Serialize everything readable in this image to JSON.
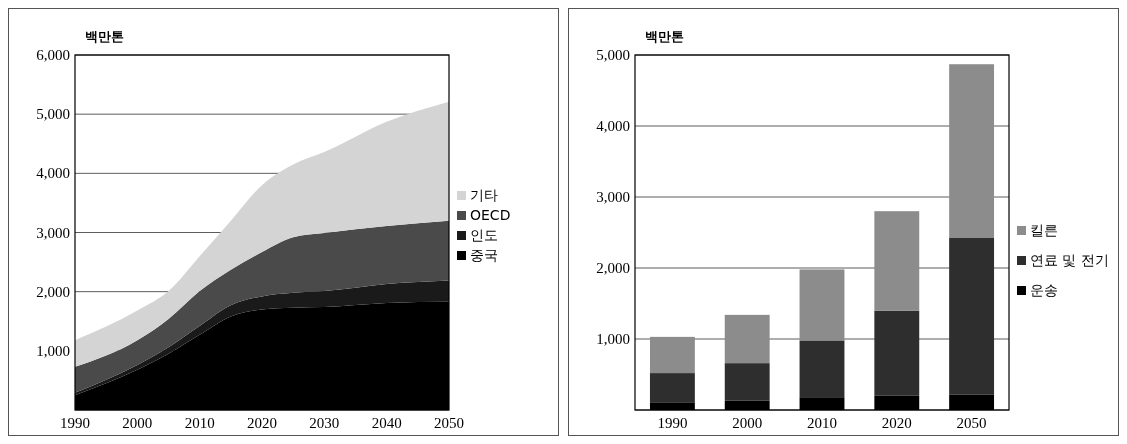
{
  "chart_data": [
    {
      "type": "area",
      "stacked": true,
      "ylabel": "백만톤",
      "x": [
        1990,
        2000,
        2005,
        2010,
        2015,
        2020,
        2025,
        2030,
        2040,
        2050
      ],
      "xlim": [
        1990,
        2050
      ],
      "xticks": [
        1990,
        2000,
        2010,
        2020,
        2030,
        2040,
        2050
      ],
      "ylim": [
        0,
        6000
      ],
      "yticks": [
        {
          "value": 0,
          "label": null
        },
        {
          "value": 1000,
          "label": "1,000"
        },
        {
          "value": 2000,
          "label": "2,000"
        },
        {
          "value": 3000,
          "label": "3,000"
        },
        {
          "value": 4000,
          "label": "4,000"
        },
        {
          "value": 5000,
          "label": "5,000"
        },
        {
          "value": 6000,
          "label": "6,000"
        }
      ],
      "grid": "y",
      "legend": "right",
      "series": [
        {
          "name": "중국",
          "color": "#000000",
          "values": [
            250,
            680,
            950,
            1270,
            1580,
            1700,
            1730,
            1740,
            1810,
            1830
          ]
        },
        {
          "name": "인도",
          "color": "#1a1a1a",
          "values": [
            40,
            80,
            110,
            150,
            190,
            220,
            250,
            270,
            320,
            360
          ]
        },
        {
          "name": "OECD",
          "color": "#4a4a4a",
          "values": [
            440,
            420,
            480,
            590,
            600,
            750,
            940,
            980,
            980,
            1010
          ]
        },
        {
          "name": "기타",
          "color": "#d4d4d4",
          "values": [
            450,
            500,
            470,
            590,
            830,
            1130,
            1230,
            1370,
            1760,
            2010
          ]
        }
      ]
    },
    {
      "type": "bar",
      "stacked": true,
      "ylabel": "백만톤",
      "categories": [
        "1990",
        "2000",
        "2010",
        "2020",
        "2050"
      ],
      "ylim": [
        0,
        5000
      ],
      "yticks": [
        {
          "value": 0,
          "label": null
        },
        {
          "value": 1000,
          "label": "1,000"
        },
        {
          "value": 2000,
          "label": "2,000"
        },
        {
          "value": 3000,
          "label": "3,000"
        },
        {
          "value": 4000,
          "label": "4,000"
        },
        {
          "value": 5000,
          "label": "5,000"
        }
      ],
      "grid": "y",
      "legend": "right",
      "series": [
        {
          "name": "운송",
          "color": "#000000",
          "values": [
            100,
            130,
            180,
            200,
            220
          ]
        },
        {
          "name": "연료 및 전기",
          "color": "#2e2e2e",
          "values": [
            420,
            530,
            800,
            1200,
            2210
          ]
        },
        {
          "name": "킬른",
          "color": "#8c8c8c",
          "values": [
            510,
            680,
            1000,
            1400,
            2440
          ]
        }
      ]
    }
  ]
}
